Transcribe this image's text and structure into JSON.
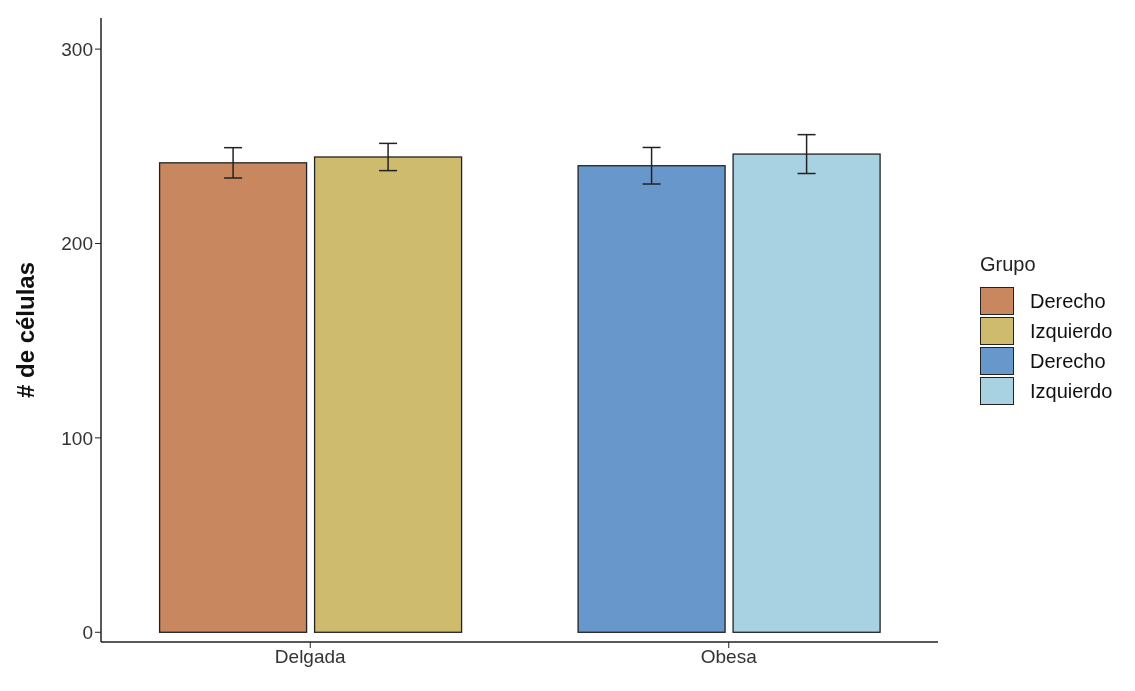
{
  "chart_data": {
    "type": "bar",
    "ylabel": "# de células",
    "legend_title": "Grupo",
    "legend": "right",
    "grid": false,
    "categories": [
      "Delgada",
      "Obesa"
    ],
    "series": [
      {
        "name": "Derecho",
        "color": "#c8875e",
        "values": [
          241.5,
          null
        ],
        "errors": [
          7.8,
          null
        ]
      },
      {
        "name": "Izquierdo",
        "color": "#cfbb6e",
        "values": [
          244.5,
          null
        ],
        "errors": [
          7,
          null
        ]
      },
      {
        "name": "Derecho",
        "color": "#6897cc",
        "values": [
          null,
          240
        ],
        "errors": [
          null,
          9.4
        ]
      },
      {
        "name": "Izquierdo",
        "color": "#a8d1e2",
        "values": [
          null,
          246
        ],
        "errors": [
          null,
          10
        ]
      }
    ],
    "ylim": [
      -5,
      316
    ],
    "yticks": [
      0,
      100,
      200,
      300
    ]
  }
}
